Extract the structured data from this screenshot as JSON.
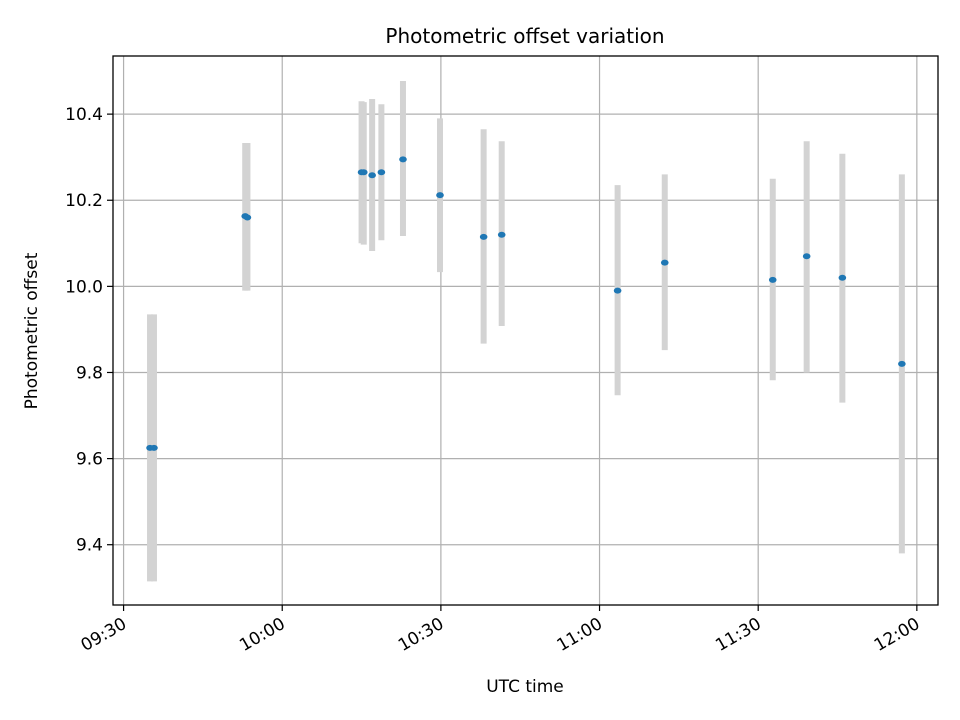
{
  "chart_data": {
    "type": "scatter",
    "title": "Photometric offset variation",
    "xlabel": "UTC time",
    "ylabel": "Photometric offset",
    "x_ticks": [
      "09:30",
      "10:00",
      "10:30",
      "11:00",
      "11:30",
      "12:00"
    ],
    "y_ticks": [
      "9.4",
      "9.6",
      "9.8",
      "10.0",
      "10.2",
      "10.4"
    ],
    "xlim": [
      "09:28",
      "12:04"
    ],
    "ylim": [
      9.26,
      10.535
    ],
    "grid": true,
    "colors": {
      "point": "#1f77b4",
      "errorbar": "#d3d3d3",
      "grid": "#b0b0b0"
    },
    "points": [
      {
        "x": "09:35:00",
        "y": 9.625,
        "ylow": 9.315,
        "yhigh": 9.935
      },
      {
        "x": "09:35:45",
        "y": 9.625,
        "ylow": 9.315,
        "yhigh": 9.935
      },
      {
        "x": "09:53:00",
        "y": 10.163,
        "ylow": 9.99,
        "yhigh": 10.333
      },
      {
        "x": "09:53:25",
        "y": 10.16,
        "ylow": 9.99,
        "yhigh": 10.333
      },
      {
        "x": "10:15:00",
        "y": 10.265,
        "ylow": 10.1,
        "yhigh": 10.43
      },
      {
        "x": "10:15:25",
        "y": 10.265,
        "ylow": 10.097,
        "yhigh": 10.428
      },
      {
        "x": "10:17:00",
        "y": 10.258,
        "ylow": 10.082,
        "yhigh": 10.435
      },
      {
        "x": "10:18:45",
        "y": 10.265,
        "ylow": 10.107,
        "yhigh": 10.423
      },
      {
        "x": "10:22:50",
        "y": 10.295,
        "ylow": 10.117,
        "yhigh": 10.477
      },
      {
        "x": "10:29:50",
        "y": 10.212,
        "ylow": 10.033,
        "yhigh": 10.39
      },
      {
        "x": "10:38:05",
        "y": 10.115,
        "ylow": 9.867,
        "yhigh": 10.365
      },
      {
        "x": "10:41:30",
        "y": 10.12,
        "ylow": 9.908,
        "yhigh": 10.337
      },
      {
        "x": "11:03:25",
        "y": 9.99,
        "ylow": 9.747,
        "yhigh": 10.235
      },
      {
        "x": "11:12:20",
        "y": 10.055,
        "ylow": 9.852,
        "yhigh": 10.26
      },
      {
        "x": "11:32:45",
        "y": 10.015,
        "ylow": 9.782,
        "yhigh": 10.25
      },
      {
        "x": "11:39:10",
        "y": 10.07,
        "ylow": 9.8,
        "yhigh": 10.337
      },
      {
        "x": "11:45:55",
        "y": 10.02,
        "ylow": 9.73,
        "yhigh": 10.308
      },
      {
        "x": "11:57:10",
        "y": 9.82,
        "ylow": 9.38,
        "yhigh": 10.26
      }
    ]
  }
}
